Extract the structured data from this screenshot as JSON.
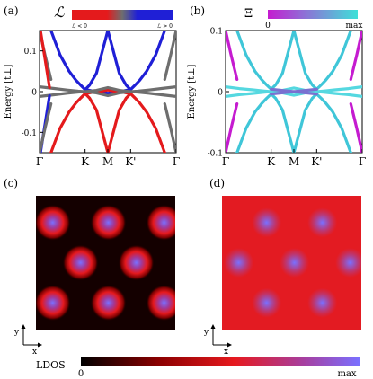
{
  "figure": {
    "panel_a": {
      "label": "(a)",
      "legend_symbol": "ℒ",
      "legend_left": "ℒ < 0",
      "legend_right": "ℒ > 0",
      "legend_colors": [
        "#e41a1c",
        "#6e6e6e",
        "#1f1fd6"
      ]
    },
    "panel_b": {
      "label": "(b)",
      "legend_symbol": "Ξ",
      "legend_left": "0",
      "legend_right": "max",
      "legend_colors": [
        "#c51bd0",
        "#3fe0d8"
      ]
    },
    "panel_c": {
      "label": "(c)"
    },
    "panel_d": {
      "label": "(d)"
    },
    "ylabel": "Energy [t⊥]",
    "axis_x_label": "x",
    "axis_y_label": "y",
    "ldos_label": "LDOS",
    "ldos_min_label": "0",
    "ldos_max_label": "max",
    "ldos_colors": [
      "#000000",
      "#8b0000",
      "#e6191e",
      "#a63fa0",
      "#7a70ff"
    ]
  },
  "chart_data": [
    {
      "type": "line",
      "panel": "(a)",
      "ylabel": "Energy [t⊥]",
      "ylim": [
        -0.15,
        0.15
      ],
      "yticks": [
        0.1,
        0,
        -0.1
      ],
      "xticks": [
        "Γ",
        "K",
        "M",
        "K'",
        "Γ"
      ],
      "xtick_positions": [
        0,
        1,
        1.5,
        2,
        3
      ],
      "series": [
        {
          "color": "#1f1fd6",
          "x": [
            0.25,
            0.45,
            0.65,
            0.8,
            0.9,
            1.0,
            1.1,
            1.25,
            1.5,
            1.75,
            1.9,
            2.0,
            2.1,
            2.2,
            2.35,
            2.55,
            2.75
          ],
          "y": [
            0.15,
            0.09,
            0.05,
            0.028,
            0.016,
            0.005,
            0.016,
            0.045,
            0.15,
            0.045,
            0.016,
            0.005,
            0.016,
            0.028,
            0.05,
            0.09,
            0.15
          ]
        },
        {
          "color": "#1f1fd6",
          "x": [
            1.0,
            1.15,
            1.3,
            1.5,
            1.7,
            1.85,
            2.0
          ],
          "y": [
            0.005,
            0.002,
            0.0,
            -0.004,
            0.0,
            0.002,
            0.005
          ]
        },
        {
          "color": "#e41a1c",
          "x": [
            0.25,
            0.45,
            0.65,
            0.8,
            0.9,
            1.0,
            1.1,
            1.25,
            1.5,
            1.75,
            1.9,
            2.0,
            2.1,
            2.2,
            2.35,
            2.55,
            2.75
          ],
          "y": [
            -0.15,
            -0.09,
            -0.05,
            -0.028,
            -0.016,
            -0.005,
            -0.016,
            -0.045,
            -0.15,
            -0.045,
            -0.016,
            -0.005,
            -0.016,
            -0.028,
            -0.05,
            -0.09,
            -0.15
          ]
        },
        {
          "color": "#e41a1c",
          "x": [
            1.0,
            1.15,
            1.3,
            1.5,
            1.7,
            1.85,
            2.0
          ],
          "y": [
            -0.005,
            -0.002,
            0.0,
            0.004,
            0.0,
            -0.002,
            -0.005
          ]
        },
        {
          "color": "#6e6e6e",
          "x": [
            0.0,
            0.3,
            0.6,
            0.85,
            1.0,
            1.25,
            1.5,
            1.75,
            2.0,
            2.15,
            2.4,
            2.7,
            3.0
          ],
          "y": [
            0.012,
            0.008,
            0.004,
            0.001,
            0.0,
            0.003,
            0.01,
            0.003,
            0.0,
            0.001,
            0.004,
            0.008,
            0.012
          ]
        },
        {
          "color": "#6e6e6e",
          "x": [
            0.0,
            0.3,
            0.6,
            0.85,
            1.0,
            1.25,
            1.5,
            1.75,
            2.0,
            2.15,
            2.4,
            2.7,
            3.0
          ],
          "y": [
            -0.012,
            -0.008,
            -0.004,
            -0.001,
            0.0,
            -0.003,
            -0.01,
            -0.003,
            0.0,
            -0.001,
            -0.004,
            -0.008,
            -0.012
          ]
        },
        {
          "color": "#6e6e6e",
          "x": [
            0.0,
            0.12,
            0.25
          ],
          "y": [
            0.15,
            0.09,
            0.03
          ]
        },
        {
          "color": "#e41a1c",
          "x": [
            0.02,
            0.12,
            0.22
          ],
          "y": [
            0.15,
            0.08,
            0.01
          ]
        },
        {
          "color": "#1f1fd6",
          "x": [
            0.02,
            0.12,
            0.22
          ],
          "y": [
            -0.15,
            -0.08,
            -0.01
          ]
        },
        {
          "color": "#6e6e6e",
          "x": [
            0.0,
            0.12,
            0.25
          ],
          "y": [
            -0.15,
            -0.09,
            -0.03
          ]
        },
        {
          "color": "#6e6e6e",
          "x": [
            3.0,
            2.88,
            2.75
          ],
          "y": [
            0.15,
            0.09,
            0.03
          ]
        },
        {
          "color": "#6e6e6e",
          "x": [
            3.0,
            2.88,
            2.75
          ],
          "y": [
            -0.15,
            -0.09,
            -0.03
          ]
        }
      ]
    },
    {
      "type": "line",
      "panel": "(b)",
      "ylabel": "Energy [t⊥]",
      "ylim": [
        -0.1,
        0.1
      ],
      "yticks": [
        0.1,
        0,
        -0.1
      ],
      "xticks": [
        "Γ",
        "K",
        "M",
        "K'",
        "Γ"
      ],
      "xtick_positions": [
        0,
        1,
        1.5,
        2,
        3
      ],
      "series": [
        {
          "color": "#3fc6d8",
          "x": [
            0.25,
            0.45,
            0.65,
            0.8,
            0.9,
            1.0,
            1.1,
            1.25,
            1.5,
            1.75,
            1.9,
            2.0,
            2.1,
            2.2,
            2.35,
            2.55,
            2.75
          ],
          "y": [
            0.1,
            0.06,
            0.033,
            0.019,
            0.011,
            0.004,
            0.011,
            0.03,
            0.1,
            0.03,
            0.011,
            0.004,
            0.011,
            0.019,
            0.033,
            0.06,
            0.1
          ]
        },
        {
          "color": "#3fc6d8",
          "x": [
            0.25,
            0.45,
            0.65,
            0.8,
            0.9,
            1.0,
            1.1,
            1.25,
            1.5,
            1.75,
            1.9,
            2.0,
            2.1,
            2.2,
            2.35,
            2.55,
            2.75
          ],
          "y": [
            -0.1,
            -0.06,
            -0.033,
            -0.019,
            -0.011,
            -0.004,
            -0.011,
            -0.03,
            -0.1,
            -0.03,
            -0.011,
            -0.004,
            -0.011,
            -0.019,
            -0.033,
            -0.06,
            -0.1
          ]
        },
        {
          "color": "#55d8e0",
          "x": [
            0.0,
            0.3,
            0.6,
            0.85,
            1.0,
            1.25,
            1.5,
            1.75,
            2.0,
            2.15,
            2.4,
            2.7,
            3.0
          ],
          "y": [
            0.008,
            0.005,
            0.003,
            0.001,
            0.0,
            0.002,
            0.006,
            0.002,
            0.0,
            0.001,
            0.003,
            0.005,
            0.008
          ]
        },
        {
          "color": "#55d8e0",
          "x": [
            0.0,
            0.3,
            0.6,
            0.85,
            1.0,
            1.25,
            1.5,
            1.75,
            2.0,
            2.15,
            2.4,
            2.7,
            3.0
          ],
          "y": [
            -0.008,
            -0.005,
            -0.003,
            -0.001,
            0.0,
            -0.002,
            -0.006,
            -0.002,
            0.0,
            -0.001,
            -0.003,
            -0.005,
            -0.008
          ]
        },
        {
          "color": "#c51bd0",
          "x": [
            0.0,
            0.12,
            0.25
          ],
          "y": [
            0.1,
            0.06,
            0.02
          ]
        },
        {
          "color": "#c51bd0",
          "x": [
            0.0,
            0.12,
            0.25
          ],
          "y": [
            -0.1,
            -0.06,
            -0.02
          ]
        },
        {
          "color": "#c51bd0",
          "x": [
            3.0,
            2.88,
            2.75
          ],
          "y": [
            0.1,
            0.06,
            0.02
          ]
        },
        {
          "color": "#c51bd0",
          "x": [
            3.0,
            2.88,
            2.75
          ],
          "y": [
            -0.1,
            -0.06,
            -0.02
          ]
        },
        {
          "color": "#7a70d0",
          "x": [
            1.0,
            1.5,
            2.0
          ],
          "y": [
            0.004,
            0.0,
            0.004
          ]
        },
        {
          "color": "#7a70d0",
          "x": [
            1.0,
            1.5,
            2.0
          ],
          "y": [
            -0.004,
            0.0,
            -0.004
          ]
        }
      ]
    },
    {
      "type": "heatmap",
      "panel": "(c)",
      "background_color": "#140000",
      "spots": [
        [
          0.12,
          0.2
        ],
        [
          0.52,
          0.2
        ],
        [
          0.92,
          0.2
        ],
        [
          0.32,
          0.5
        ],
        [
          0.72,
          0.5
        ],
        [
          0.12,
          0.8
        ],
        [
          0.52,
          0.8
        ],
        [
          0.92,
          0.8
        ]
      ]
    },
    {
      "type": "heatmap",
      "panel": "(d)",
      "background_color": "#e31b22",
      "spots": [
        [
          0.32,
          0.2
        ],
        [
          0.72,
          0.2
        ],
        [
          0.12,
          0.5
        ],
        [
          0.52,
          0.5
        ],
        [
          0.92,
          0.5
        ],
        [
          0.32,
          0.8
        ],
        [
          0.72,
          0.8
        ]
      ]
    }
  ]
}
